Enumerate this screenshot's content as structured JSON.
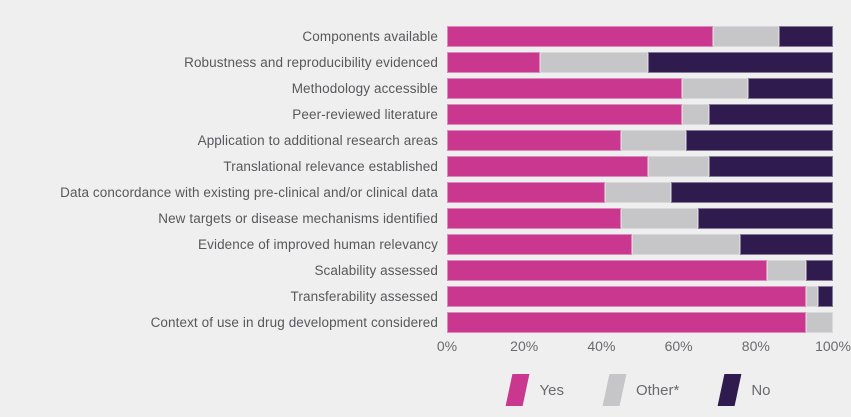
{
  "page": {
    "background": "#efefef",
    "label_text_color": "#57585b",
    "axis_text_color": "#696a6e"
  },
  "legend": {
    "items": [
      {
        "key": "yes",
        "label": "Yes",
        "color": "#c9388e"
      },
      {
        "key": "other",
        "label": "Other*",
        "color": "#c6c6c8"
      },
      {
        "key": "no",
        "label": "No",
        "color": "#2f1b4d"
      }
    ]
  },
  "chart_data": {
    "type": "bar",
    "orientation": "horizontal",
    "stacked": true,
    "title": "",
    "xlabel": "",
    "ylabel": "",
    "xlim": [
      0,
      100
    ],
    "x_tick_labels": [
      "0%",
      "20%",
      "40%",
      "60%",
      "80%",
      "100%"
    ],
    "grid": false,
    "legend_position": "bottom",
    "categories": [
      "Components available",
      "Robustness and reproducibility evidenced",
      "Methodology accessible",
      "Peer-reviewed literature",
      "Application to additional research areas",
      "Translational relevance established",
      "Data concordance with existing pre-clinical and/or clinical data",
      "New targets or disease mechanisms identified",
      "Evidence of improved human relevancy",
      "Scalability assessed",
      "Transferability assessed",
      "Context of use in drug development considered"
    ],
    "series": [
      {
        "name": "Yes",
        "color": "#c9388e",
        "values": [
          69,
          24,
          61,
          61,
          45,
          52,
          41,
          45,
          48,
          83,
          93,
          93
        ]
      },
      {
        "name": "Other*",
        "color": "#c6c6c8",
        "values": [
          17,
          28,
          17,
          7,
          17,
          16,
          17,
          20,
          28,
          10,
          3,
          7
        ]
      },
      {
        "name": "No",
        "color": "#2f1b4d",
        "values": [
          14,
          48,
          22,
          32,
          38,
          32,
          42,
          35,
          24,
          7,
          4,
          0
        ]
      }
    ]
  }
}
